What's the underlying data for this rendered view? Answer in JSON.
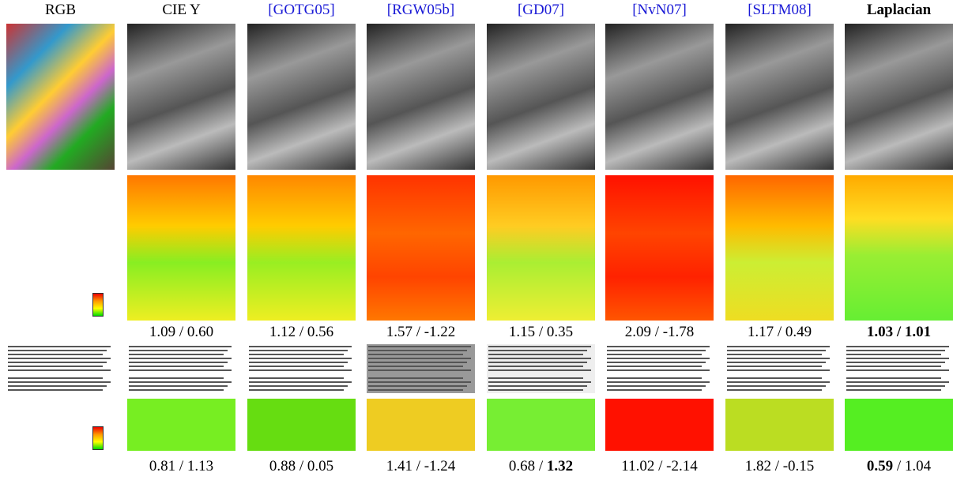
{
  "separator": " / ",
  "columns": [
    {
      "header": "RGB",
      "link": false,
      "bold": false
    },
    {
      "header": "CIE Y",
      "link": false,
      "bold": false
    },
    {
      "header": "[GOTG05]",
      "link": true,
      "bold": false
    },
    {
      "header": "[RGW05b]",
      "link": true,
      "bold": false
    },
    {
      "header": "[GD07]",
      "link": true,
      "bold": false
    },
    {
      "header": "[NvN07]",
      "link": true,
      "bold": false
    },
    {
      "header": "[SLTM08]",
      "link": true,
      "bold": false
    },
    {
      "header": "Laplacian",
      "link": false,
      "bold": true
    }
  ],
  "scores_photo": [
    {
      "a": "1.09",
      "b": "0.60",
      "bold": [
        false,
        false
      ]
    },
    {
      "a": "1.12",
      "b": "0.56",
      "bold": [
        false,
        false
      ]
    },
    {
      "a": "1.57",
      "b": "-1.22",
      "bold": [
        false,
        false
      ]
    },
    {
      "a": "1.15",
      "b": "0.35",
      "bold": [
        false,
        false
      ]
    },
    {
      "a": "2.09",
      "b": "-1.78",
      "bold": [
        false,
        false
      ]
    },
    {
      "a": "1.17",
      "b": "0.49",
      "bold": [
        false,
        false
      ]
    },
    {
      "a": "1.03",
      "b": "1.01",
      "bold": [
        true,
        true
      ]
    }
  ],
  "scores_document": [
    {
      "a": "0.81",
      "b": "1.13",
      "bold": [
        false,
        false
      ]
    },
    {
      "a": "0.88",
      "b": "0.05",
      "bold": [
        false,
        false
      ]
    },
    {
      "a": "1.41",
      "b": "-1.24",
      "bold": [
        false,
        false
      ]
    },
    {
      "a": "0.68",
      "b": "1.32",
      "bold": [
        false,
        true
      ]
    },
    {
      "a": "11.02",
      "b": "-2.14",
      "bold": [
        false,
        false
      ]
    },
    {
      "a": "1.82",
      "b": "-0.15",
      "bold": [
        false,
        false
      ]
    },
    {
      "a": "0.59",
      "b": "1.04",
      "bold": [
        true,
        false
      ]
    }
  ]
}
